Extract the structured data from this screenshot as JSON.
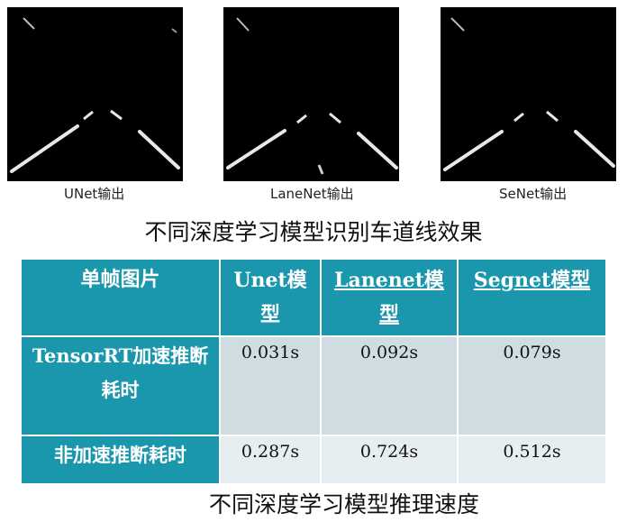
{
  "figures": [
    {
      "caption": "UNet输出"
    },
    {
      "caption": "LaneNet输出"
    },
    {
      "caption": "SeNet输出"
    }
  ],
  "title_top": "不同深度学习模型识别车道线效果",
  "table": {
    "headers": [
      "单帧图片",
      "Unet模型",
      "Lanenet模型",
      "Segnet模型"
    ],
    "rows": [
      {
        "label": "TensorRT加速推断耗时",
        "values": [
          "0.031s",
          "0.092s",
          "0.079s"
        ]
      },
      {
        "label": "非加速推断耗时",
        "values": [
          "0.287s",
          "0.724s",
          "0.512s"
        ]
      }
    ]
  },
  "title_bottom": "不同深度学习模型推理速度",
  "colors": {
    "header_bg": "#1a96ad",
    "row1_bg": "#cfdde3",
    "row2_bg": "#e7eef1"
  }
}
